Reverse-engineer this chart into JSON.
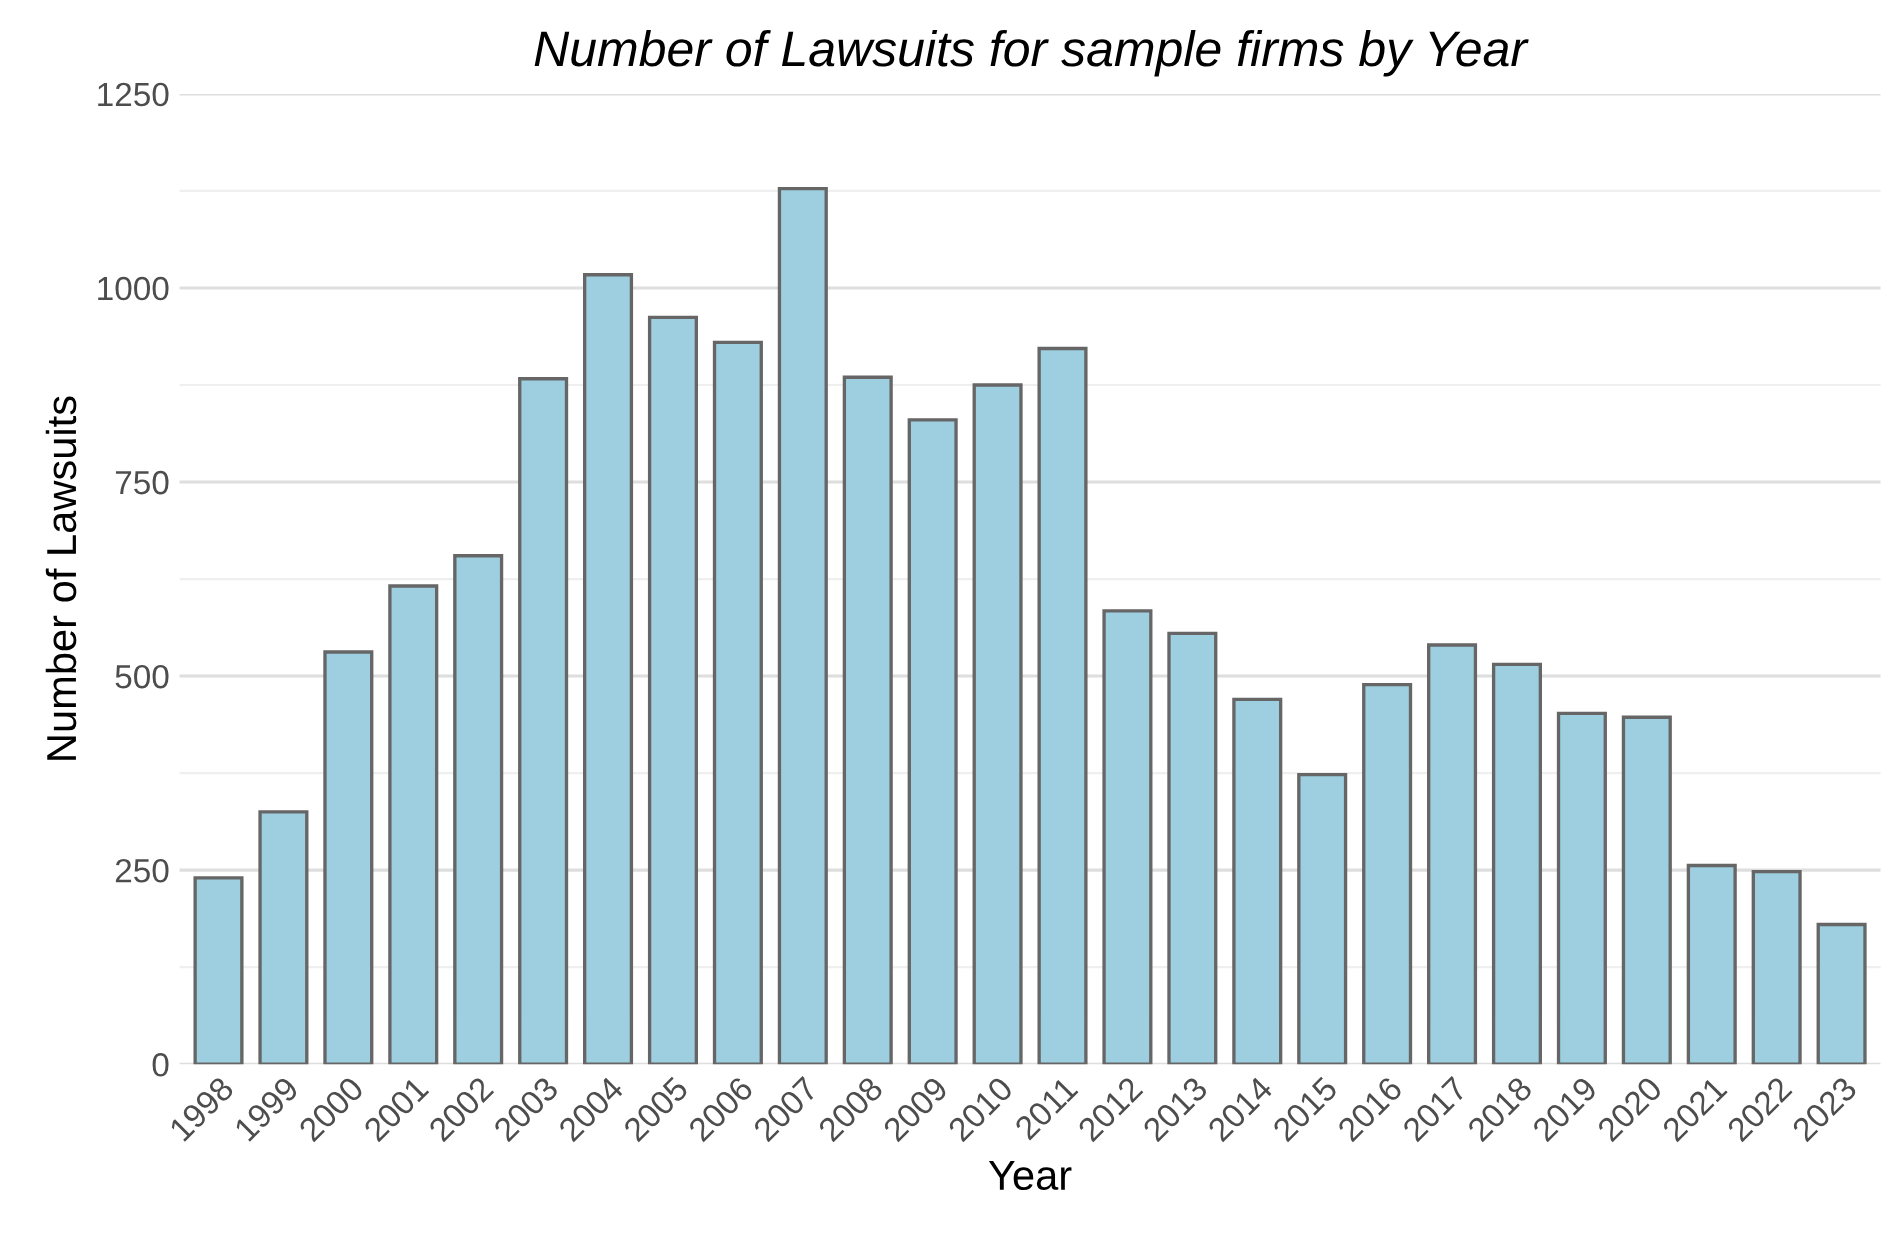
{
  "chart_data": {
    "type": "bar",
    "title": "Number of Lawsuits for sample firms by Year",
    "xlabel": "Year",
    "ylabel": "Number of Lawsuits",
    "categories": [
      "1998",
      "1999",
      "2000",
      "2001",
      "2002",
      "2003",
      "2004",
      "2005",
      "2006",
      "2007",
      "2008",
      "2009",
      "2010",
      "2011",
      "2012",
      "2013",
      "2014",
      "2015",
      "2016",
      "2017",
      "2018",
      "2019",
      "2020",
      "2021",
      "2022",
      "2023"
    ],
    "values": [
      240,
      325,
      531,
      616,
      655,
      883,
      1017,
      962,
      930,
      1128,
      885,
      830,
      875,
      922,
      584,
      555,
      470,
      373,
      489,
      540,
      515,
      452,
      447,
      256,
      248,
      180
    ],
    "color": "#9ecfe0",
    "ylim": [
      0,
      1250
    ],
    "yticks": [
      0,
      {
        "value": 125,
        "label": null
      },
      250,
      {
        "value": 375,
        "label": null
      },
      500,
      {
        "value": 625,
        "label": null
      },
      750,
      {
        "value": 875,
        "label": null
      },
      1000,
      {
        "value": 1125,
        "label": null
      },
      1250
    ],
    "grid": "y"
  }
}
